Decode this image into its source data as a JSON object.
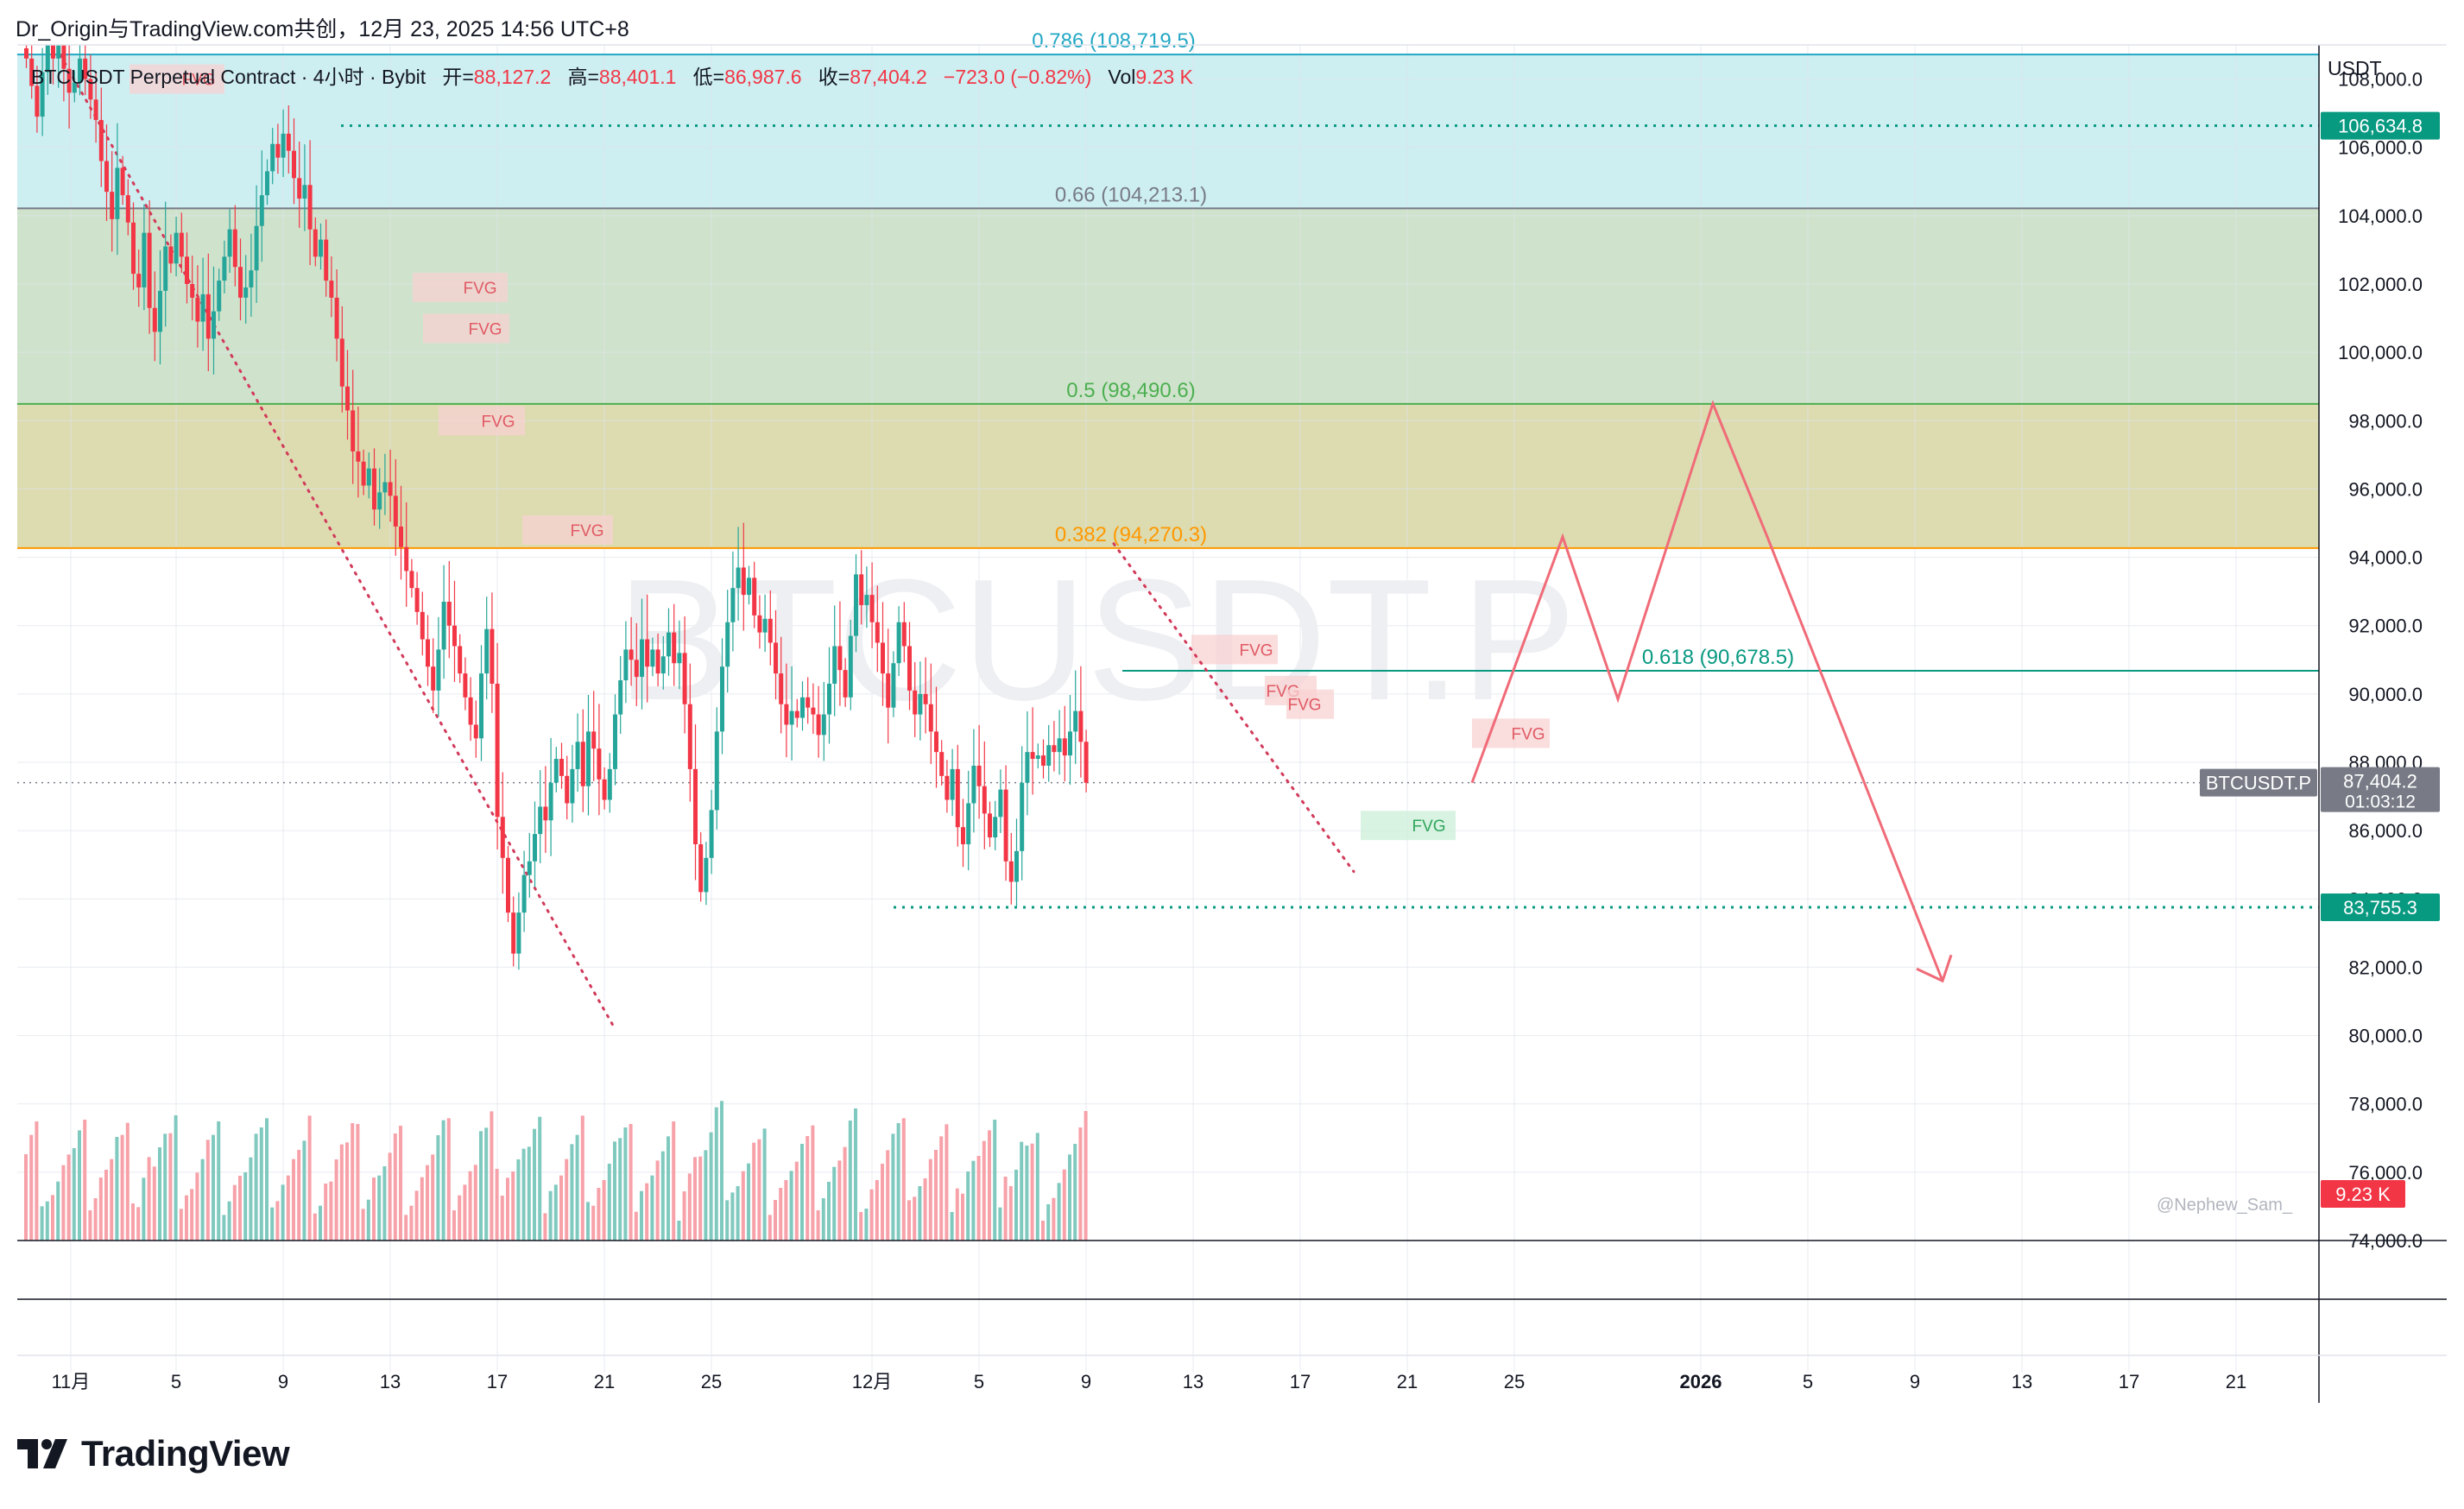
{
  "caption": {
    "author": "Dr_Origin与TradingView.com共创",
    "timestamp": "12月 23, 2025 14:56 UTC+8"
  },
  "legend": {
    "symbol": "BTCUSDT Perpetual Contract · 4小时 · Bybit",
    "open_label": "开=",
    "open": "88,127.2",
    "high_label": "高=",
    "high": "88,401.1",
    "low_label": "低=",
    "low": "86,987.6",
    "close_label": "收=",
    "close": "87,404.2",
    "change": "−723.0 (−0.82%)",
    "vol_label": "Vol",
    "vol": "9.23 K"
  },
  "currency": "USDT",
  "watermark": "BTCUSDT.P",
  "credit": "@Nephew_Sam_",
  "logo": "TradingView",
  "colors": {
    "up": "#26a69a",
    "down": "#f23645",
    "fib_zone_top": "#cdeff2",
    "fib_zone_mid": "#cfe3cc",
    "fib_zone_low": "#dcdcb0",
    "projection": "#f06b78",
    "level_green": "#089981",
    "trend_dots": "#d23a5a"
  },
  "chart_data": {
    "type": "candlestick",
    "y_axis": {
      "ticks": [
        "74,000.0",
        "76,000.0",
        "78,000.0",
        "80,000.0",
        "82,000.0",
        "84,000.0",
        "86,000.0",
        "88,000.0",
        "90,000.0",
        "92,000.0",
        "94,000.0",
        "96,000.0",
        "98,000.0",
        "100,000.0",
        "102,000.0",
        "104,000.0",
        "106,000.0",
        "108,000.0"
      ],
      "min": 74000,
      "max": 109000
    },
    "x_axis": {
      "ticks": [
        {
          "label": "11月",
          "bold": false
        },
        {
          "label": "5",
          "bold": false
        },
        {
          "label": "9",
          "bold": false
        },
        {
          "label": "13",
          "bold": false
        },
        {
          "label": "17",
          "bold": false
        },
        {
          "label": "21",
          "bold": false
        },
        {
          "label": "25",
          "bold": false
        },
        {
          "label": "12月",
          "bold": false
        },
        {
          "label": "5",
          "bold": false
        },
        {
          "label": "9",
          "bold": false
        },
        {
          "label": "13",
          "bold": false
        },
        {
          "label": "17",
          "bold": false
        },
        {
          "label": "21",
          "bold": false
        },
        {
          "label": "25",
          "bold": false
        },
        {
          "label": "2026",
          "bold": true
        },
        {
          "label": "5",
          "bold": false
        },
        {
          "label": "9",
          "bold": false
        },
        {
          "label": "13",
          "bold": false
        },
        {
          "label": "17",
          "bold": false
        },
        {
          "label": "21",
          "bold": false
        }
      ]
    },
    "fib_levels": [
      {
        "ratio": "0.786",
        "price": 108719.5,
        "label": "0.786 (108,719.5)",
        "color": "#22a7c4"
      },
      {
        "ratio": "0.66",
        "price": 104213.1,
        "label": "0.66 (104,213.1)",
        "color": "#787b86"
      },
      {
        "ratio": "0.5",
        "price": 98490.6,
        "label": "0.5 (98,490.6)",
        "color": "#4caf50"
      },
      {
        "ratio": "0.382",
        "price": 94270.3,
        "label": "0.382 (94,270.3)",
        "color": "#ff9800"
      },
      {
        "ratio": "0.618",
        "price": 90678.5,
        "label": "0.618 (90,678.5)",
        "color": "#089981"
      }
    ],
    "horizontal_levels": [
      {
        "price": 106634.8,
        "label": "106,634.8",
        "style": "dotted"
      },
      {
        "price": 83755.3,
        "label": "83,755.3",
        "style": "dotted"
      }
    ],
    "current_price": {
      "price": 87404.2,
      "label": "87,404.2",
      "countdown": "01:03:12",
      "symbol": "BTCUSDT.P"
    },
    "volume_badge": "9.23 K",
    "fvg_labels": [
      {
        "label": "FVG",
        "price": 108000,
        "bias": "bearish"
      },
      {
        "label": "FVG",
        "price": 101900,
        "bias": "bearish"
      },
      {
        "label": "FVG",
        "price": 100700,
        "bias": "bearish"
      },
      {
        "label": "FVG",
        "price": 98000,
        "bias": "bearish"
      },
      {
        "label": "FVG",
        "price": 94800,
        "bias": "bearish"
      },
      {
        "label": "FVG",
        "price": 91300,
        "bias": "bearish"
      },
      {
        "label": "FVG",
        "price": 90100,
        "bias": "bearish"
      },
      {
        "label": "FVG",
        "price": 89700,
        "bias": "bearish"
      },
      {
        "label": "FVG",
        "price": 88850,
        "bias": "bearish"
      },
      {
        "label": "FVG",
        "price": 86150,
        "bias": "bullish"
      }
    ],
    "projection_path": [
      {
        "x": "Dec 23",
        "price": 87400
      },
      {
        "x": "Dec 27",
        "price": 94600
      },
      {
        "x": "Dec 31",
        "price": 89850
      },
      {
        "x": "Jan 2",
        "price": 98500
      },
      {
        "x": "Jan 4",
        "price": 94600
      },
      {
        "x": "Jan 10",
        "price": 81600
      }
    ],
    "candles_close": [
      108600,
      107800,
      106900,
      108200,
      109000,
      108600,
      109100,
      108300,
      107600,
      107900,
      108600,
      108000,
      107400,
      106800,
      105600,
      104700,
      103900,
      105400,
      104600,
      103800,
      102300,
      101900,
      103500,
      101300,
      100600,
      101800,
      103100,
      102600,
      103500,
      102800,
      102000,
      101600,
      100900,
      101700,
      100400,
      101200,
      102100,
      102800,
      103600,
      102500,
      101600,
      101900,
      102400,
      103700,
      104600,
      105300,
      106100,
      105700,
      106400,
      105900,
      105100,
      104500,
      104900,
      103600,
      102800,
      103300,
      102100,
      101600,
      100400,
      99000,
      98300,
      97100,
      96800,
      96100,
      96600,
      95400,
      95900,
      96200,
      95800,
      94900,
      94300,
      93600,
      93100,
      92400,
      91600,
      90800,
      90100,
      91300,
      92700,
      92000,
      91400,
      90600,
      89900,
      89100,
      88700,
      90600,
      91900,
      90300,
      86400,
      85200,
      83600,
      82400,
      83600,
      84700,
      85100,
      85900,
      86700,
      86300,
      87400,
      88100,
      87600,
      86800,
      87800,
      88600,
      87300,
      88900,
      88400,
      87500,
      86900,
      87800,
      89400,
      90400,
      91300,
      91000,
      90500,
      91600,
      90800,
      91300,
      90600,
      91100,
      91800,
      90900,
      91200,
      89700,
      87800,
      85600,
      84200,
      85200,
      86600,
      88900,
      90800,
      92100,
      93100,
      93700,
      92900,
      93400,
      92300,
      91800,
      92200,
      91500,
      90600,
      89700,
      89100,
      89500,
      89300,
      89900,
      89600,
      89400,
      88800,
      89400,
      90300,
      91400,
      90700,
      89900,
      91700,
      93500,
      92600,
      92900,
      92100,
      91500,
      90600,
      89600,
      90900,
      92100,
      91400,
      90100,
      89400,
      90000,
      89700,
      88900,
      88300,
      87600,
      86900,
      87800,
      86100,
      85600,
      86800,
      87900,
      87300,
      86500,
      85800,
      86400,
      87200,
      85100,
      84500,
      85400,
      87400,
      88300,
      88100,
      88200,
      87900,
      88500,
      88300,
      88700,
      88200,
      88900,
      89500,
      88600,
      87400
    ]
  }
}
